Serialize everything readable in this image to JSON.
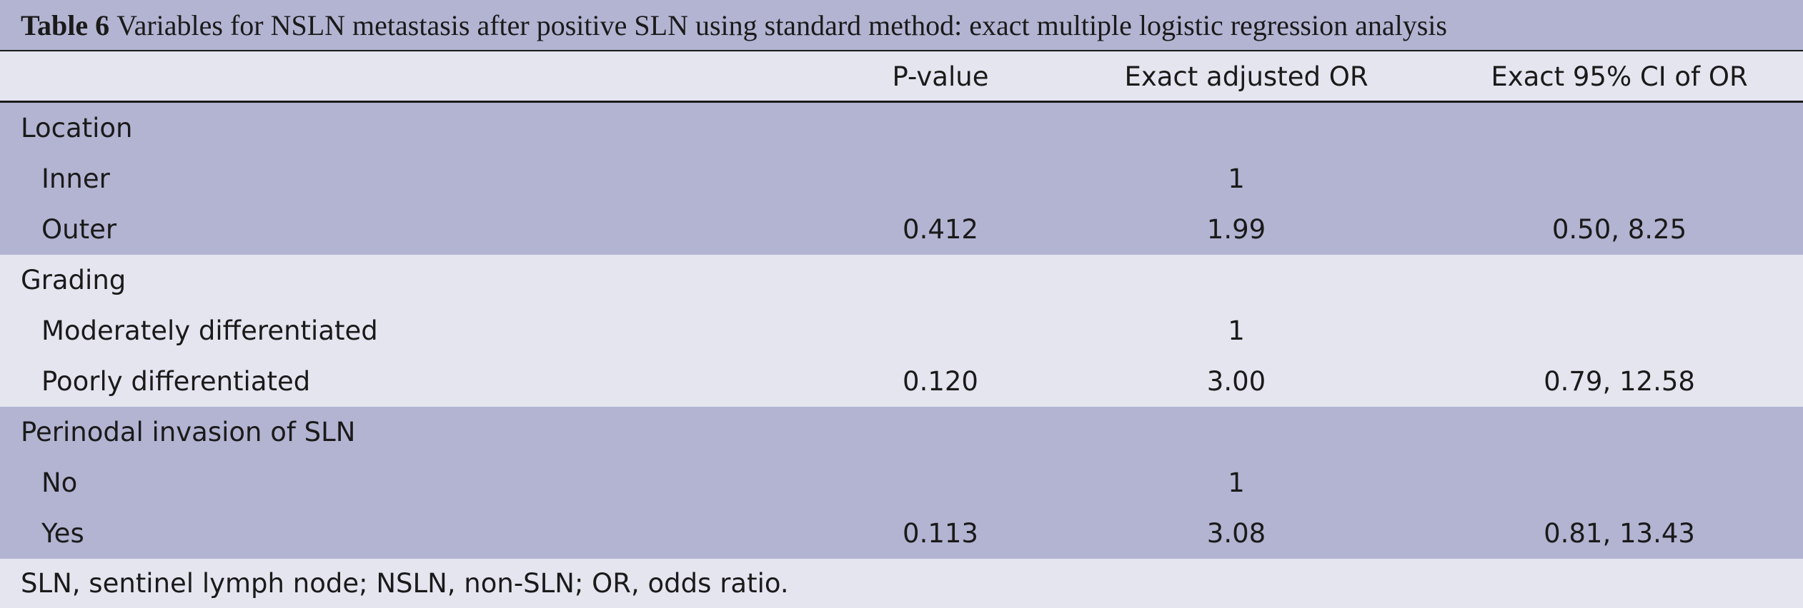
{
  "title": {
    "label": "Table 6",
    "text": "Variables for NSLN metastasis after positive SLN using standard method: exact multiple logistic regression analysis"
  },
  "header": [
    "P-value",
    "Exact adjusted OR",
    "Exact 95% CI of OR"
  ],
  "groups": [
    {
      "name": "Location",
      "rows": [
        {
          "label": "Inner",
          "p_value": null,
          "or": "1",
          "ci": null
        },
        {
          "label": "Outer",
          "p_value": "0.412",
          "or": "1.99",
          "ci": "0.50, 8.25"
        }
      ]
    },
    {
      "name": "Grading",
      "rows": [
        {
          "label": "Moderately differentiated",
          "p_value": null,
          "or": "1",
          "ci": null
        },
        {
          "label": "Poorly differentiated",
          "p_value": "0.120",
          "or": "3.00",
          "ci": "0.79, 12.58"
        }
      ]
    },
    {
      "name": "Perinodal invasion of SLN",
      "rows": [
        {
          "label": "No",
          "p_value": null,
          "or": "1",
          "ci": null
        },
        {
          "label": "Yes",
          "p_value": "0.113",
          "or": "3.08",
          "ci": "0.81, 13.43"
        }
      ]
    }
  ],
  "footnote": "SLN, sentinel lymph node; NSLN, non-SLN; OR, odds ratio."
}
